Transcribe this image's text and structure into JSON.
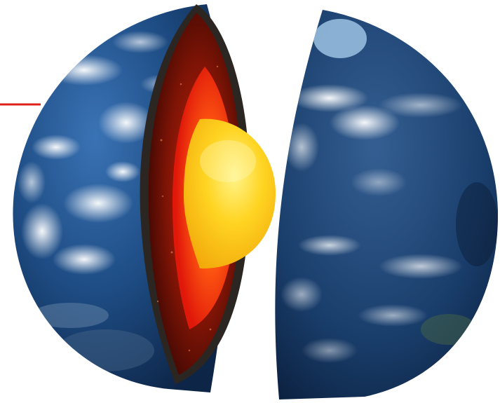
{
  "diagram": {
    "subject": "earth-cutaway",
    "layers": [
      {
        "name": "crust",
        "color": "#2f2a26"
      },
      {
        "name": "mantle",
        "color": "#7a1408"
      },
      {
        "name": "outer-core",
        "color": "#ff3a10"
      },
      {
        "name": "inner-core",
        "color": "#ffd21f"
      }
    ],
    "colors": {
      "ocean": "#1f4f86",
      "ocean_dark": "#0f2c55",
      "cloud": "#e9f2fb",
      "pointer_line": "#e0201b"
    }
  }
}
